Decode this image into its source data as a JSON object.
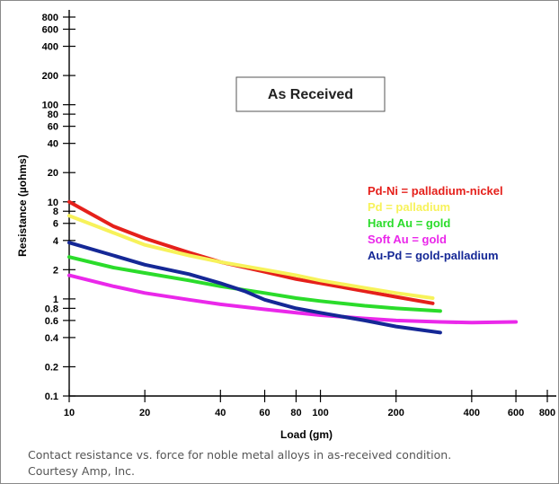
{
  "chart_data": {
    "type": "line",
    "title": "",
    "xlabel": "Load (gm)",
    "ylabel": "Resistance (µohms)",
    "x_scale": "log",
    "y_scale": "log",
    "xlim": [
      10,
      800
    ],
    "ylim": [
      0.1,
      800
    ],
    "x_ticks": [
      {
        "value": 10,
        "label": "10"
      },
      {
        "value": 20,
        "label": "20"
      },
      {
        "value": 40,
        "label": "40"
      },
      {
        "value": 60,
        "label": "60"
      },
      {
        "value": 80,
        "label": "80"
      },
      {
        "value": 100,
        "label": "100"
      },
      {
        "value": 200,
        "label": "200"
      },
      {
        "value": 400,
        "label": "400"
      },
      {
        "value": 600,
        "label": "600"
      },
      {
        "value": 800,
        "label": "800"
      }
    ],
    "y_ticks": [
      {
        "value": 0.1,
        "label": "0.1"
      },
      {
        "value": 0.2,
        "label": "0.2"
      },
      {
        "value": 0.4,
        "label": "0.4"
      },
      {
        "value": 0.6,
        "label": "0.6"
      },
      {
        "value": 0.8,
        "label": "0.8"
      },
      {
        "value": 1,
        "label": "1"
      },
      {
        "value": 2,
        "label": "2"
      },
      {
        "value": 4,
        "label": "4"
      },
      {
        "value": 6,
        "label": "6"
      },
      {
        "value": 8,
        "label": "8"
      },
      {
        "value": 10,
        "label": "10"
      },
      {
        "value": 20,
        "label": "20"
      },
      {
        "value": 40,
        "label": "40"
      },
      {
        "value": 60,
        "label": "60"
      },
      {
        "value": 80,
        "label": "80"
      },
      {
        "value": 100,
        "label": "100"
      },
      {
        "value": 200,
        "label": "200"
      },
      {
        "value": 400,
        "label": "400"
      },
      {
        "value": 600,
        "label": "600"
      },
      {
        "value": 800,
        "label": "800"
      }
    ],
    "grid": false,
    "legend_position": "right",
    "annotation": "As Received",
    "series": [
      {
        "name": "Pd-Ni = palladium-nickel",
        "color": "#e5201b",
        "points": [
          [
            10,
            10
          ],
          [
            15,
            5.6
          ],
          [
            20,
            4.2
          ],
          [
            30,
            3.0
          ],
          [
            40,
            2.4
          ],
          [
            60,
            1.9
          ],
          [
            80,
            1.6
          ],
          [
            100,
            1.45
          ],
          [
            150,
            1.2
          ],
          [
            200,
            1.05
          ],
          [
            280,
            0.9
          ]
        ]
      },
      {
        "name": "Pd = palladium",
        "color": "#f7f25a",
        "points": [
          [
            10,
            7.2
          ],
          [
            15,
            4.8
          ],
          [
            20,
            3.6
          ],
          [
            30,
            2.8
          ],
          [
            40,
            2.4
          ],
          [
            60,
            2.0
          ],
          [
            80,
            1.75
          ],
          [
            100,
            1.55
          ],
          [
            150,
            1.3
          ],
          [
            200,
            1.15
          ],
          [
            280,
            1.02
          ]
        ]
      },
      {
        "name": "Hard Au = gold",
        "color": "#2bdc2b",
        "points": [
          [
            10,
            2.7
          ],
          [
            15,
            2.1
          ],
          [
            20,
            1.85
          ],
          [
            30,
            1.55
          ],
          [
            40,
            1.35
          ],
          [
            60,
            1.15
          ],
          [
            80,
            1.02
          ],
          [
            100,
            0.95
          ],
          [
            150,
            0.85
          ],
          [
            200,
            0.8
          ],
          [
            300,
            0.75
          ]
        ]
      },
      {
        "name": "Soft Au = gold",
        "color": "#ea28ea",
        "points": [
          [
            10,
            1.75
          ],
          [
            15,
            1.35
          ],
          [
            20,
            1.15
          ],
          [
            30,
            0.98
          ],
          [
            40,
            0.88
          ],
          [
            60,
            0.78
          ],
          [
            80,
            0.72
          ],
          [
            100,
            0.68
          ],
          [
            150,
            0.63
          ],
          [
            200,
            0.6
          ],
          [
            300,
            0.58
          ],
          [
            400,
            0.57
          ],
          [
            600,
            0.58
          ]
        ]
      },
      {
        "name": "Au-Pd = gold-palladium",
        "color": "#152896",
        "points": [
          [
            10,
            3.8
          ],
          [
            15,
            2.8
          ],
          [
            20,
            2.25
          ],
          [
            30,
            1.8
          ],
          [
            40,
            1.45
          ],
          [
            50,
            1.2
          ],
          [
            60,
            0.98
          ],
          [
            80,
            0.8
          ],
          [
            100,
            0.72
          ],
          [
            150,
            0.6
          ],
          [
            200,
            0.52
          ],
          [
            300,
            0.45
          ]
        ]
      }
    ]
  },
  "caption": {
    "line1": "Contact resistance vs. force for noble metal alloys in as-received condition.",
    "line2": "Courtesy Amp, Inc."
  }
}
